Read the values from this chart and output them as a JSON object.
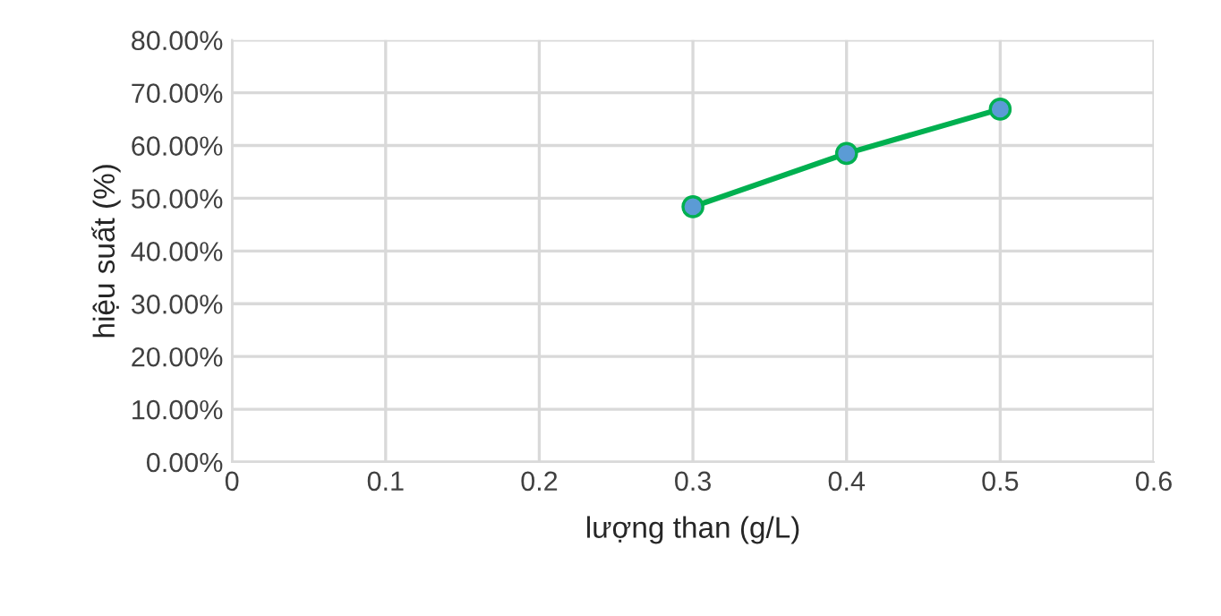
{
  "chart_data": {
    "type": "line",
    "xlabel": "lượng than (g/L)",
    "ylabel": "hiệu suất (%)",
    "x": [
      0.3,
      0.4,
      0.5
    ],
    "series": [
      {
        "color": "#00b050",
        "values": [
          48.4,
          58.5,
          66.9
        ]
      }
    ],
    "marker": "circle",
    "xlim": [
      0,
      0.6
    ],
    "xticks": [
      0,
      0.1,
      0.2,
      0.3,
      0.4,
      0.5,
      0.6
    ],
    "ylim": [
      0,
      80
    ],
    "yticks": [
      {
        "value": 0,
        "label": "0.00%"
      },
      {
        "value": 10,
        "label": "10.00%"
      },
      {
        "value": 20,
        "label": "20.00%"
      },
      {
        "value": 30,
        "label": "30.00%"
      },
      {
        "value": 40,
        "label": "40.00%"
      },
      {
        "value": 50,
        "label": "50.00%"
      },
      {
        "value": 60,
        "label": "60.00%"
      },
      {
        "value": 70,
        "label": "70.00%"
      },
      {
        "value": 80,
        "label": "80.00%"
      }
    ],
    "grid": true
  }
}
